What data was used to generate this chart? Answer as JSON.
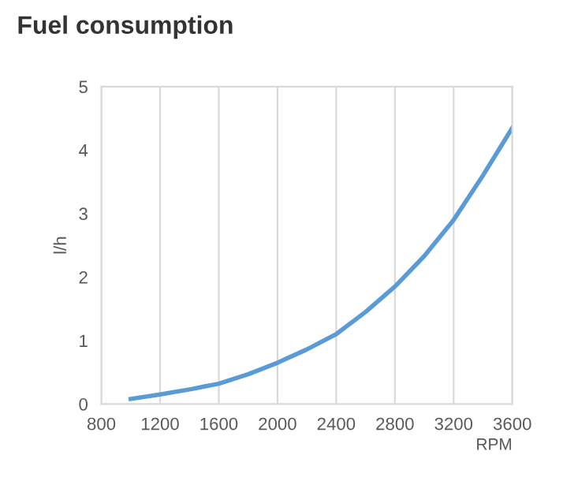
{
  "chart_data": {
    "type": "line",
    "title": "Fuel consumption",
    "xlabel": "RPM",
    "ylabel": "l/h",
    "x": [
      1000,
      1200,
      1400,
      1600,
      1800,
      2000,
      2200,
      2400,
      2600,
      2800,
      3000,
      3200,
      3400,
      3600
    ],
    "series": [
      {
        "color": "#5b9bd5",
        "values": [
          0.08,
          0.15,
          0.23,
          0.32,
          0.47,
          0.65,
          0.86,
          1.1,
          1.45,
          1.85,
          2.33,
          2.9,
          3.6,
          4.35
        ]
      }
    ],
    "xlim": [
      800,
      3600
    ],
    "xticks": [
      800,
      1200,
      1600,
      2000,
      2400,
      2800,
      3200,
      3600
    ],
    "ylim": [
      0,
      5
    ],
    "yticks": [
      0,
      1,
      2,
      3,
      4,
      5
    ],
    "grid": "x",
    "marker": "none",
    "line_style": "solid"
  }
}
